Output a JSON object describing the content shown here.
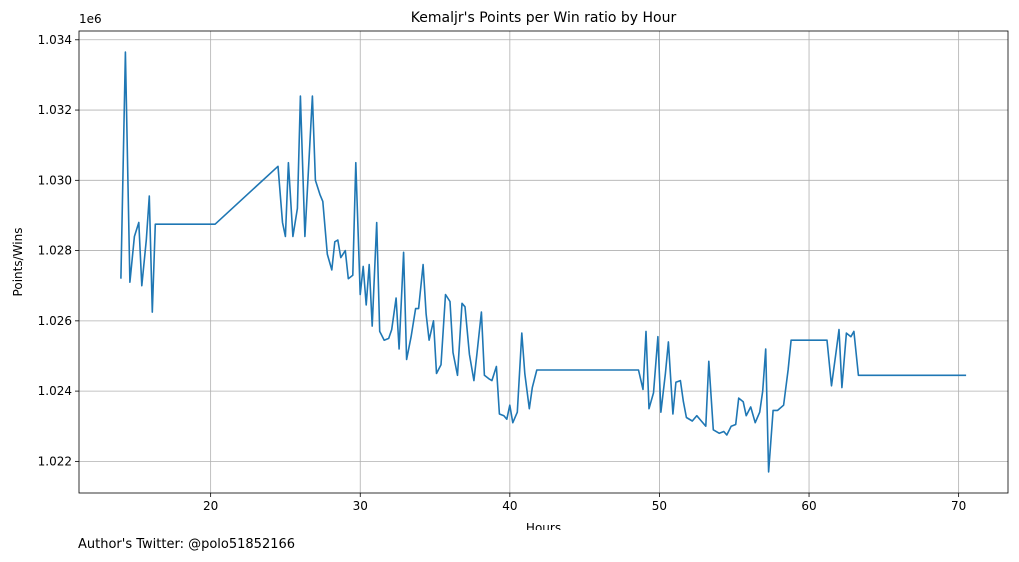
{
  "chart_data": {
    "type": "line",
    "title": "Kemaljr's Points per Win ratio by Hour",
    "xlabel": "Hours",
    "ylabel": "Points/Wins",
    "y_offset_text": "1e6",
    "xlim": [
      11.2,
      73.3
    ],
    "ylim": [
      1.0211,
      1.03425
    ],
    "grid": true,
    "x_ticks": [
      20,
      30,
      40,
      50,
      60,
      70
    ],
    "y_ticks": [
      1.022,
      1.024,
      1.026,
      1.028,
      1.03,
      1.032,
      1.034
    ],
    "y_tick_labels": [
      "1.022",
      "1.024",
      "1.026",
      "1.028",
      "1.030",
      "1.032",
      "1.034"
    ],
    "series": [
      {
        "color": "#1f77b4",
        "points": [
          [
            14.0,
            1.0272
          ],
          [
            14.3,
            1.03365
          ],
          [
            14.6,
            1.0271
          ],
          [
            14.9,
            1.0284
          ],
          [
            15.2,
            1.0288
          ],
          [
            15.4,
            1.027
          ],
          [
            15.7,
            1.0283
          ],
          [
            15.9,
            1.02955
          ],
          [
            16.1,
            1.02625
          ],
          [
            16.3,
            1.02875
          ],
          [
            20.3,
            1.02875
          ],
          [
            24.5,
            1.0304
          ],
          [
            24.8,
            1.0288
          ],
          [
            25.0,
            1.0284
          ],
          [
            25.2,
            1.0305
          ],
          [
            25.5,
            1.0284
          ],
          [
            25.8,
            1.0292
          ],
          [
            26.0,
            1.0324
          ],
          [
            26.3,
            1.0284
          ],
          [
            26.5,
            1.03
          ],
          [
            26.8,
            1.0324
          ],
          [
            27.0,
            1.03
          ],
          [
            27.3,
            1.0296
          ],
          [
            27.5,
            1.0294
          ],
          [
            27.8,
            1.0279
          ],
          [
            28.1,
            1.02745
          ],
          [
            28.3,
            1.02825
          ],
          [
            28.5,
            1.0283
          ],
          [
            28.7,
            1.0278
          ],
          [
            29.0,
            1.028
          ],
          [
            29.2,
            1.0272
          ],
          [
            29.5,
            1.0273
          ],
          [
            29.7,
            1.0305
          ],
          [
            30.0,
            1.02675
          ],
          [
            30.2,
            1.02755
          ],
          [
            30.4,
            1.02645
          ],
          [
            30.6,
            1.0276
          ],
          [
            30.8,
            1.02585
          ],
          [
            31.1,
            1.0288
          ],
          [
            31.3,
            1.0257
          ],
          [
            31.6,
            1.02545
          ],
          [
            31.9,
            1.0255
          ],
          [
            32.1,
            1.02575
          ],
          [
            32.4,
            1.02665
          ],
          [
            32.6,
            1.0252
          ],
          [
            32.9,
            1.02795
          ],
          [
            33.1,
            1.0249
          ],
          [
            33.4,
            1.02555
          ],
          [
            33.7,
            1.02635
          ],
          [
            33.9,
            1.02635
          ],
          [
            34.2,
            1.0276
          ],
          [
            34.4,
            1.0262
          ],
          [
            34.6,
            1.02545
          ],
          [
            34.9,
            1.026
          ],
          [
            35.1,
            1.0245
          ],
          [
            35.4,
            1.02475
          ],
          [
            35.7,
            1.02675
          ],
          [
            36.0,
            1.02655
          ],
          [
            36.2,
            1.0251
          ],
          [
            36.5,
            1.02445
          ],
          [
            36.8,
            1.0265
          ],
          [
            37.0,
            1.0264
          ],
          [
            37.3,
            1.02505
          ],
          [
            37.6,
            1.0243
          ],
          [
            37.8,
            1.02505
          ],
          [
            38.1,
            1.02625
          ],
          [
            38.3,
            1.02445
          ],
          [
            38.6,
            1.02435
          ],
          [
            38.8,
            1.0243
          ],
          [
            39.1,
            1.0247
          ],
          [
            39.3,
            1.02335
          ],
          [
            39.6,
            1.0233
          ],
          [
            39.8,
            1.0232
          ],
          [
            40.0,
            1.0236
          ],
          [
            40.2,
            1.0231
          ],
          [
            40.5,
            1.0234
          ],
          [
            40.8,
            1.02565
          ],
          [
            41.0,
            1.0245
          ],
          [
            41.3,
            1.0235
          ],
          [
            41.5,
            1.0241
          ],
          [
            41.8,
            1.0246
          ],
          [
            48.6,
            1.0246
          ],
          [
            48.9,
            1.02405
          ],
          [
            49.1,
            1.0257
          ],
          [
            49.3,
            1.0235
          ],
          [
            49.6,
            1.02395
          ],
          [
            49.9,
            1.02555
          ],
          [
            50.1,
            1.0234
          ],
          [
            50.4,
            1.0245
          ],
          [
            50.6,
            1.0254
          ],
          [
            50.9,
            1.02335
          ],
          [
            51.1,
            1.02425
          ],
          [
            51.4,
            1.0243
          ],
          [
            51.6,
            1.0237
          ],
          [
            51.8,
            1.02325
          ],
          [
            52.2,
            1.02315
          ],
          [
            52.5,
            1.0233
          ],
          [
            52.8,
            1.02315
          ],
          [
            53.1,
            1.023
          ],
          [
            53.3,
            1.02485
          ],
          [
            53.6,
            1.0229
          ],
          [
            54.0,
            1.0228
          ],
          [
            54.3,
            1.02285
          ],
          [
            54.5,
            1.02275
          ],
          [
            54.8,
            1.023
          ],
          [
            55.1,
            1.02305
          ],
          [
            55.3,
            1.0238
          ],
          [
            55.6,
            1.0237
          ],
          [
            55.8,
            1.0233
          ],
          [
            56.1,
            1.02355
          ],
          [
            56.4,
            1.0231
          ],
          [
            56.7,
            1.0234
          ],
          [
            56.9,
            1.024
          ],
          [
            57.1,
            1.0252
          ],
          [
            57.3,
            1.0217
          ],
          [
            57.6,
            1.02345
          ],
          [
            57.9,
            1.02345
          ],
          [
            58.3,
            1.0236
          ],
          [
            58.6,
            1.0246
          ],
          [
            58.8,
            1.02545
          ],
          [
            61.2,
            1.02545
          ],
          [
            61.5,
            1.02415
          ],
          [
            61.8,
            1.0251
          ],
          [
            62.0,
            1.02575
          ],
          [
            62.2,
            1.0241
          ],
          [
            62.5,
            1.02565
          ],
          [
            62.8,
            1.02555
          ],
          [
            63.0,
            1.0257
          ],
          [
            63.3,
            1.02445
          ],
          [
            70.5,
            1.02445
          ]
        ]
      }
    ]
  },
  "footnote": "Author's Twitter: @polo51852166"
}
